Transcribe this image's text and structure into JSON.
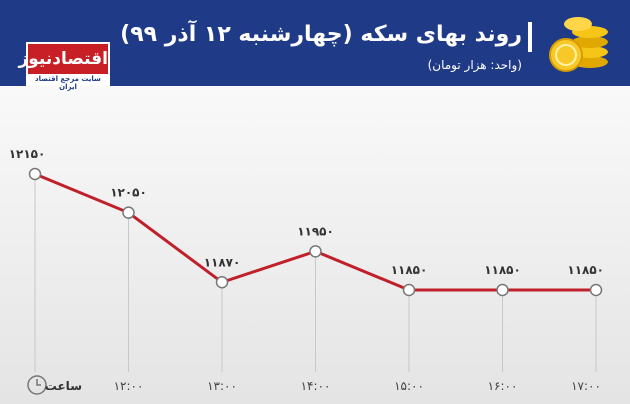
{
  "logo": {
    "name": "اقتصادنیوز",
    "tagline": "سایت مرجع اقتصاد ایران"
  },
  "chart_data": {
    "type": "line",
    "title": "روند بهای سکه (چهارشنبه ۱۲ آذر ۹۹)",
    "subtitle": "(واحد: هزار تومان)",
    "x_label": "ساعت",
    "categories": [
      null,
      "۱۲:۰۰",
      "۱۳:۰۰",
      "۱۴:۰۰",
      "۱۵:۰۰",
      "۱۶:۰۰",
      "۱۷:۰۰"
    ],
    "values": [
      12150,
      12050,
      11870,
      11950,
      11850,
      11850,
      11850
    ],
    "value_labels": [
      "۱۲۱۵۰",
      "۱۲۰۵۰",
      "۱۱۸۷۰",
      "۱۱۹۵۰",
      "۱۱۸۵۰",
      "۱۱۸۵۰",
      "۱۱۸۵۰"
    ],
    "color": "#c0202a"
  }
}
